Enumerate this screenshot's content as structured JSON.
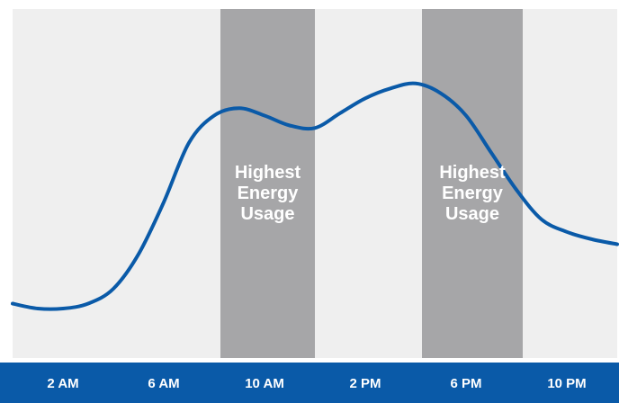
{
  "chart_data": {
    "type": "line",
    "title": "",
    "xlabel": "",
    "ylabel": "",
    "x_tick_labels": [
      "2 AM",
      "6 AM",
      "10 AM",
      "2 PM",
      "6 PM",
      "10 PM"
    ],
    "xlim": [
      "12 AM",
      "12 AM"
    ],
    "grid": false,
    "legend": "none",
    "series": [
      {
        "x": [
          "12 AM",
          "1 AM",
          "2 AM",
          "3 AM",
          "4 AM",
          "5 AM",
          "6 AM",
          "7 AM",
          "8 AM",
          "9 AM",
          "10 AM",
          "11 AM",
          "12 PM",
          "1 PM",
          "2 PM",
          "3 PM",
          "4 PM",
          "5 PM",
          "6 PM",
          "7 PM",
          "8 PM",
          "9 PM",
          "10 PM",
          "11 PM",
          "12 AM"
        ],
        "values": [
          0.02,
          0.0,
          0.0,
          0.02,
          0.08,
          0.22,
          0.43,
          0.67,
          0.78,
          0.81,
          0.78,
          0.74,
          0.73,
          0.79,
          0.85,
          0.89,
          0.91,
          0.87,
          0.78,
          0.63,
          0.48,
          0.36,
          0.31,
          0.28,
          0.26
        ]
      }
    ],
    "highlight_bands": [
      {
        "label_lines": [
          "Highest",
          "Energy",
          "Usage"
        ],
        "x_range": [
          "8:15 AM",
          "12:00 PM"
        ]
      },
      {
        "label_lines": [
          "Highest",
          "Energy",
          "Usage"
        ],
        "x_range": [
          "4:15 PM",
          "8:15 PM"
        ]
      }
    ],
    "colors": {
      "plot_background": "#efefef",
      "band": "#a6a6a8",
      "line": "#0a5aa8",
      "axis_bar": "#0a5aa8",
      "label_text": "#ffffff"
    }
  }
}
